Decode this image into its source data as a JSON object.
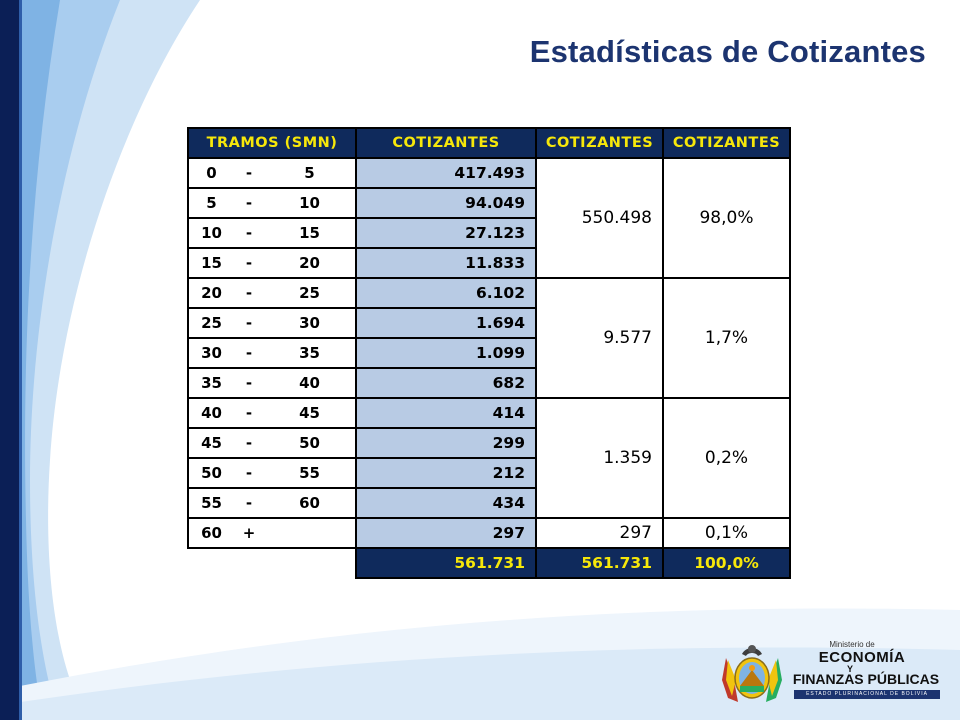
{
  "title": "Estadísticas de Cotizantes",
  "colors": {
    "title": "#1c3470",
    "header_bg": "#0f2a5c",
    "header_text": "#f6e70a",
    "value_bg": "#b8cbe4",
    "left_bar": "#0b1f56",
    "swoosh": "#bcd8f2"
  },
  "table": {
    "headers": {
      "tramos": "TRAMOS (SMN)",
      "cotizantes": "COTIZANTES",
      "cotizantes_group": "COTIZANTES",
      "cotizantes_pct": "COTIZANTES"
    },
    "rows": [
      {
        "from": "0",
        "sep": "-",
        "to": "5",
        "value": "417.493"
      },
      {
        "from": "5",
        "sep": "-",
        "to": "10",
        "value": "94.049"
      },
      {
        "from": "10",
        "sep": "-",
        "to": "15",
        "value": "27.123"
      },
      {
        "from": "15",
        "sep": "-",
        "to": "20",
        "value": "11.833"
      },
      {
        "from": "20",
        "sep": "-",
        "to": "25",
        "value": "6.102"
      },
      {
        "from": "25",
        "sep": "-",
        "to": "30",
        "value": "1.694"
      },
      {
        "from": "30",
        "sep": "-",
        "to": "35",
        "value": "1.099"
      },
      {
        "from": "35",
        "sep": "-",
        "to": "40",
        "value": "682"
      },
      {
        "from": "40",
        "sep": "-",
        "to": "45",
        "value": "414"
      },
      {
        "from": "45",
        "sep": "-",
        "to": "50",
        "value": "299"
      },
      {
        "from": "50",
        "sep": "-",
        "to": "55",
        "value": "212"
      },
      {
        "from": "55",
        "sep": "-",
        "to": "60",
        "value": "434"
      },
      {
        "from": "60",
        "sep": "+",
        "to": "",
        "value": "297"
      }
    ],
    "groups": [
      {
        "total": "550.498",
        "pct": "98,0%"
      },
      {
        "total": "9.577",
        "pct": "1,7%"
      },
      {
        "total": "1.359",
        "pct": "0,2%"
      },
      {
        "total": "297",
        "pct": "0,1%"
      }
    ],
    "totals": {
      "value": "561.731",
      "group_total": "561.731",
      "pct": "100,0%"
    }
  },
  "logo": {
    "ministerio": "Ministerio de",
    "economia": "ECONOMÍA",
    "y": "Y",
    "finanzas": "FINANZAS PÚBLICAS",
    "estado": "ESTADO PLURINACIONAL DE BOLIVIA",
    "emblem": "bolivia-coat-of-arms-icon"
  }
}
